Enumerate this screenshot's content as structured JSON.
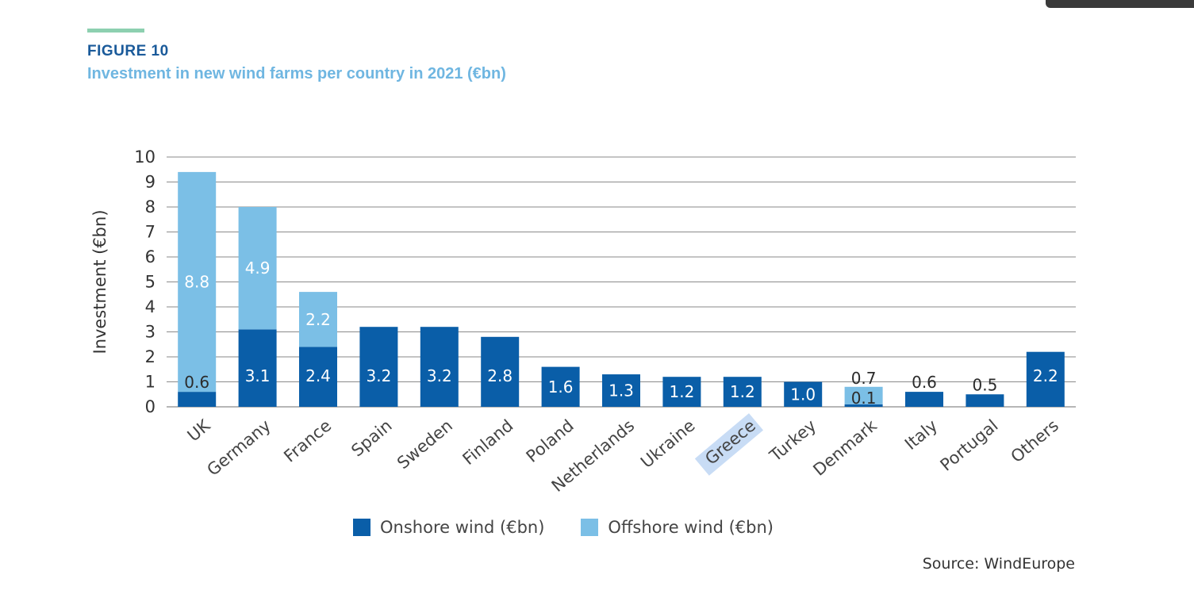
{
  "figure": {
    "label": "FIGURE 10",
    "title": "Investment in new wind farms per country in 2021 (€bn)"
  },
  "source": "Source: WindEurope",
  "colors": {
    "onshore": "#0a5ea8",
    "offshore": "#7bbfe6",
    "accent_bar": "#8dd0b0",
    "grid": "#8a8a8a"
  },
  "chart_data": {
    "type": "bar",
    "stacked": true,
    "ylabel": "Investment (€bn)",
    "ylim": [
      0,
      10
    ],
    "yticks": [
      0,
      1,
      2,
      3,
      4,
      5,
      6,
      7,
      8,
      9,
      10
    ],
    "grid": true,
    "legend_position": "bottom",
    "categories": [
      "UK",
      "Germany",
      "France",
      "Spain",
      "Sweden",
      "Finland",
      "Poland",
      "Netherlands",
      "Ukraine",
      "Greece",
      "Turkey",
      "Denmark",
      "Italy",
      "Portugal",
      "Others"
    ],
    "series": [
      {
        "name": "Onshore wind (€bn)",
        "color": "#0a5ea8",
        "values": [
          0.6,
          3.1,
          2.4,
          3.2,
          3.2,
          2.8,
          1.6,
          1.3,
          1.2,
          1.2,
          1.0,
          0.1,
          0.6,
          0.5,
          2.2
        ],
        "labels": [
          "0.6",
          "3.1",
          "2.4",
          "3.2",
          "3.2",
          "2.8",
          "1.6",
          "1.3",
          "1.2",
          "1.2",
          "1.0",
          "0.1",
          "0.6",
          "0.5",
          "2.2"
        ]
      },
      {
        "name": "Offshore wind (€bn)",
        "color": "#7bbfe6",
        "values": [
          8.8,
          4.9,
          2.2,
          0,
          0,
          0,
          0,
          0,
          0,
          0,
          0,
          0.7,
          0,
          0,
          0
        ],
        "labels": [
          "8.8",
          "4.9",
          "2.2",
          "",
          "",
          "",
          "",
          "",
          "",
          "",
          "",
          "0.7",
          "",
          "",
          ""
        ]
      }
    ],
    "highlighted_category": "Greece"
  }
}
